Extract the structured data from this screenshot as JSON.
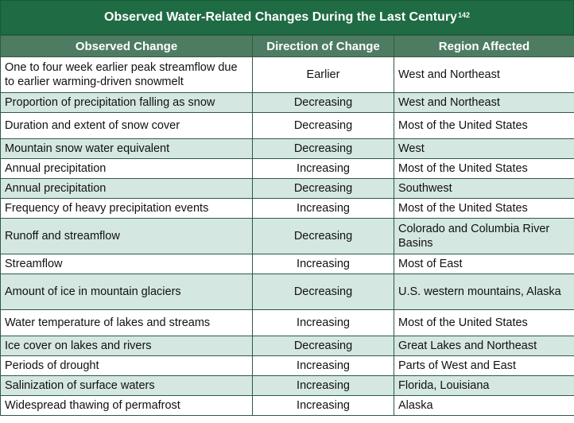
{
  "title": "Observed Water-Related Changes During the Last Century",
  "title_ref": "142",
  "columns": [
    "Observed Change",
    "Direction of Change",
    "Region Affected"
  ],
  "rows": [
    {
      "change": "One to four week earlier peak streamflow due to earlier warming-driven snowmelt",
      "direction": "Earlier",
      "region": "West and Northeast"
    },
    {
      "change": "Proportion of precipitation falling as snow",
      "direction": "Decreasing",
      "region": "West and Northeast"
    },
    {
      "change": "Duration and extent of snow cover",
      "direction": "Decreasing",
      "region": "Most of the United States"
    },
    {
      "change": "Mountain snow water equivalent",
      "direction": "Decreasing",
      "region": "West"
    },
    {
      "change": "Annual precipitation",
      "direction": "Increasing",
      "region": "Most of the United States"
    },
    {
      "change": "Annual precipitation",
      "direction": "Decreasing",
      "region": "Southwest"
    },
    {
      "change": "Frequency of heavy precipitation events",
      "direction": "Increasing",
      "region": "Most of the United States"
    },
    {
      "change": "Runoff and streamflow",
      "direction": "Decreasing",
      "region": "Colorado and Columbia River Basins"
    },
    {
      "change": "Streamflow",
      "direction": "Increasing",
      "region": "Most of East"
    },
    {
      "change": "Amount of ice in mountain glaciers",
      "direction": "Decreasing",
      "region": "U.S. western mountains, Alaska"
    },
    {
      "change": "Water temperature of lakes and streams",
      "direction": "Increasing",
      "region": "Most of the United States"
    },
    {
      "change": "Ice cover on lakes and rivers",
      "direction": "Decreasing",
      "region": "Great Lakes and Northeast"
    },
    {
      "change": "Periods of drought",
      "direction": "Increasing",
      "region": "Parts of West and East"
    },
    {
      "change": "Salinization of surface waters",
      "direction": "Increasing",
      "region": "Florida, Louisiana"
    },
    {
      "change": "Widespread thawing of permafrost",
      "direction": "Increasing",
      "region": "Alaska"
    }
  ]
}
